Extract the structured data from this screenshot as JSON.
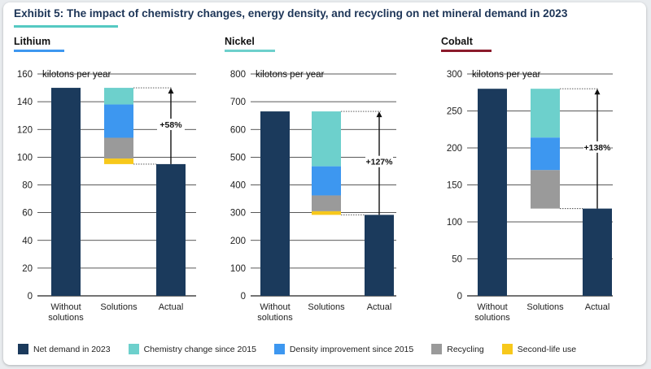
{
  "title": "Exhibit 5: The impact of chemistry changes, energy density, and recycling on net mineral demand in 2023",
  "colors": {
    "net_demand": "#1b3a5c",
    "chemistry": "#6dd0cc",
    "density": "#3d97f0",
    "recycling": "#9a9a9a",
    "second_life": "#f7c81b"
  },
  "legend": [
    {
      "label": "Net demand in 2023",
      "color": "#1b3a5c"
    },
    {
      "label": "Chemistry change since 2015",
      "color": "#6dd0cc"
    },
    {
      "label": "Density improvement since 2015",
      "color": "#3d97f0"
    },
    {
      "label": "Recycling",
      "color": "#9a9a9a"
    },
    {
      "label": "Second-life use",
      "color": "#f7c81b"
    }
  ],
  "chart_data": [
    {
      "type": "bar",
      "title": "Lithium",
      "title_rule_color": "#3d97f0",
      "unit_label": "kilotons per year",
      "ylim": [
        0,
        160
      ],
      "yticks": [
        0,
        20,
        40,
        60,
        80,
        100,
        120,
        140,
        160
      ],
      "categories": [
        "Without solutions",
        "Solutions",
        "Actual"
      ],
      "without_solutions": 150,
      "actual": 95,
      "solutions": [
        {
          "name": "Chemistry change since 2015",
          "from": 138,
          "to": 150
        },
        {
          "name": "Density improvement since 2015",
          "from": 114,
          "to": 138
        },
        {
          "name": "Recycling",
          "from": 99,
          "to": 114
        },
        {
          "name": "Second-life use",
          "from": 95,
          "to": 99
        }
      ],
      "annotation": "+58%"
    },
    {
      "type": "bar",
      "title": "Nickel",
      "title_rule_color": "#6dd0cc",
      "unit_label": "kilotons per year",
      "ylim": [
        0,
        800
      ],
      "yticks": [
        0,
        100,
        200,
        300,
        400,
        500,
        600,
        700,
        800
      ],
      "categories": [
        "Without solutions",
        "Solutions",
        "Actual"
      ],
      "without_solutions": 665,
      "actual": 292,
      "solutions": [
        {
          "name": "Chemistry change since 2015",
          "from": 467,
          "to": 665
        },
        {
          "name": "Density improvement since 2015",
          "from": 362,
          "to": 467
        },
        {
          "name": "Recycling",
          "from": 305,
          "to": 362
        },
        {
          "name": "Second-life use",
          "from": 292,
          "to": 305
        }
      ],
      "annotation": "+127%"
    },
    {
      "type": "bar",
      "title": "Cobalt",
      "title_rule_color": "#8b1a2b",
      "unit_label": "kilotons per year",
      "ylim": [
        0,
        300
      ],
      "yticks": [
        0,
        50,
        100,
        150,
        200,
        250,
        300
      ],
      "categories": [
        "Without solutions",
        "Solutions",
        "Actual"
      ],
      "without_solutions": 280,
      "actual": 118,
      "solutions": [
        {
          "name": "Chemistry change since 2015",
          "from": 214,
          "to": 280
        },
        {
          "name": "Density improvement since 2015",
          "from": 170,
          "to": 214
        },
        {
          "name": "Recycling",
          "from": 118,
          "to": 170
        }
      ],
      "annotation": "+138%"
    }
  ]
}
